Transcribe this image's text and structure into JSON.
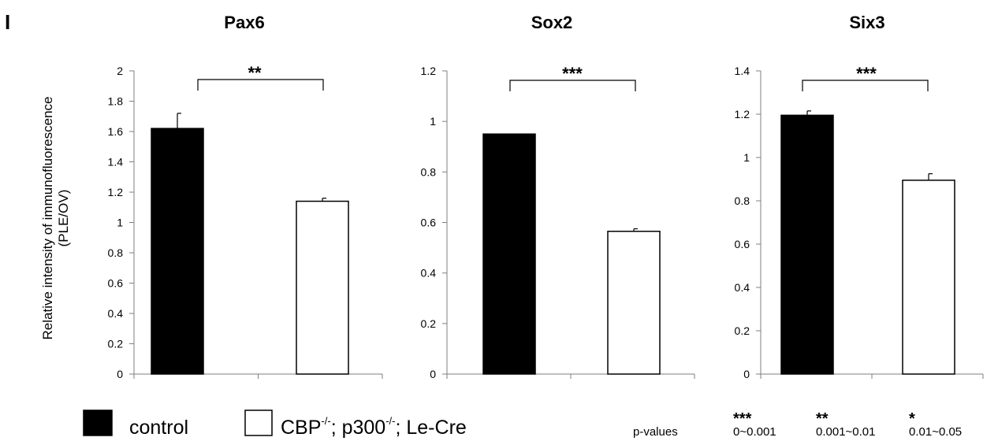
{
  "panel_letter": "I",
  "ylabel": {
    "line1": "Relative intensity of immunofluorescence",
    "line2": "(PLE/OV)"
  },
  "chart_data": [
    {
      "type": "bar",
      "title": "Pax6",
      "categories": [
        "control",
        "CBP-/-; p300-/-; Le-Cre"
      ],
      "values": [
        1.62,
        1.14
      ],
      "errors": [
        0.1,
        0.02
      ],
      "yticks": [
        "0",
        "0.2",
        "0.4",
        "0.6",
        "0.8",
        "1",
        "1.2",
        "1.4",
        "1.6",
        "1.8",
        "2"
      ],
      "ylim": [
        0,
        2
      ],
      "significance": "**"
    },
    {
      "type": "bar",
      "title": "Sox2",
      "categories": [
        "control",
        "CBP-/-; p300-/-; Le-Cre"
      ],
      "values": [
        0.95,
        0.565
      ],
      "errors": [
        0,
        0.01
      ],
      "yticks": [
        "0",
        "0.2",
        "0.4",
        "0.6",
        "0.8",
        "1",
        "1.2"
      ],
      "ylim": [
        0,
        1.2
      ],
      "significance": "***"
    },
    {
      "type": "bar",
      "title": "Six3",
      "categories": [
        "control",
        "CBP-/-; p300-/-; Le-Cre"
      ],
      "values": [
        1.195,
        0.895
      ],
      "errors": [
        0.02,
        0.03
      ],
      "yticks": [
        "0",
        "0.2",
        "0.4",
        "0.6",
        "0.8",
        "1",
        "1.2",
        "1.4"
      ],
      "ylim": [
        0,
        1.4
      ],
      "significance": "***"
    }
  ],
  "legend": {
    "control": {
      "label": "control",
      "color": "#000000"
    },
    "mutant": {
      "prefix": "CBP",
      "sup1": "-/-",
      "middle": "; p300",
      "sup2": "-/-",
      "suffix": "; Le-Cre",
      "color": "#ffffff"
    }
  },
  "pvalues": {
    "label": "p-values",
    "entries": [
      {
        "stars": "***",
        "range": "0~0.001"
      },
      {
        "stars": "**",
        "range": "0.001~0.01"
      },
      {
        "stars": "*",
        "range": "0.01~0.05"
      }
    ]
  }
}
